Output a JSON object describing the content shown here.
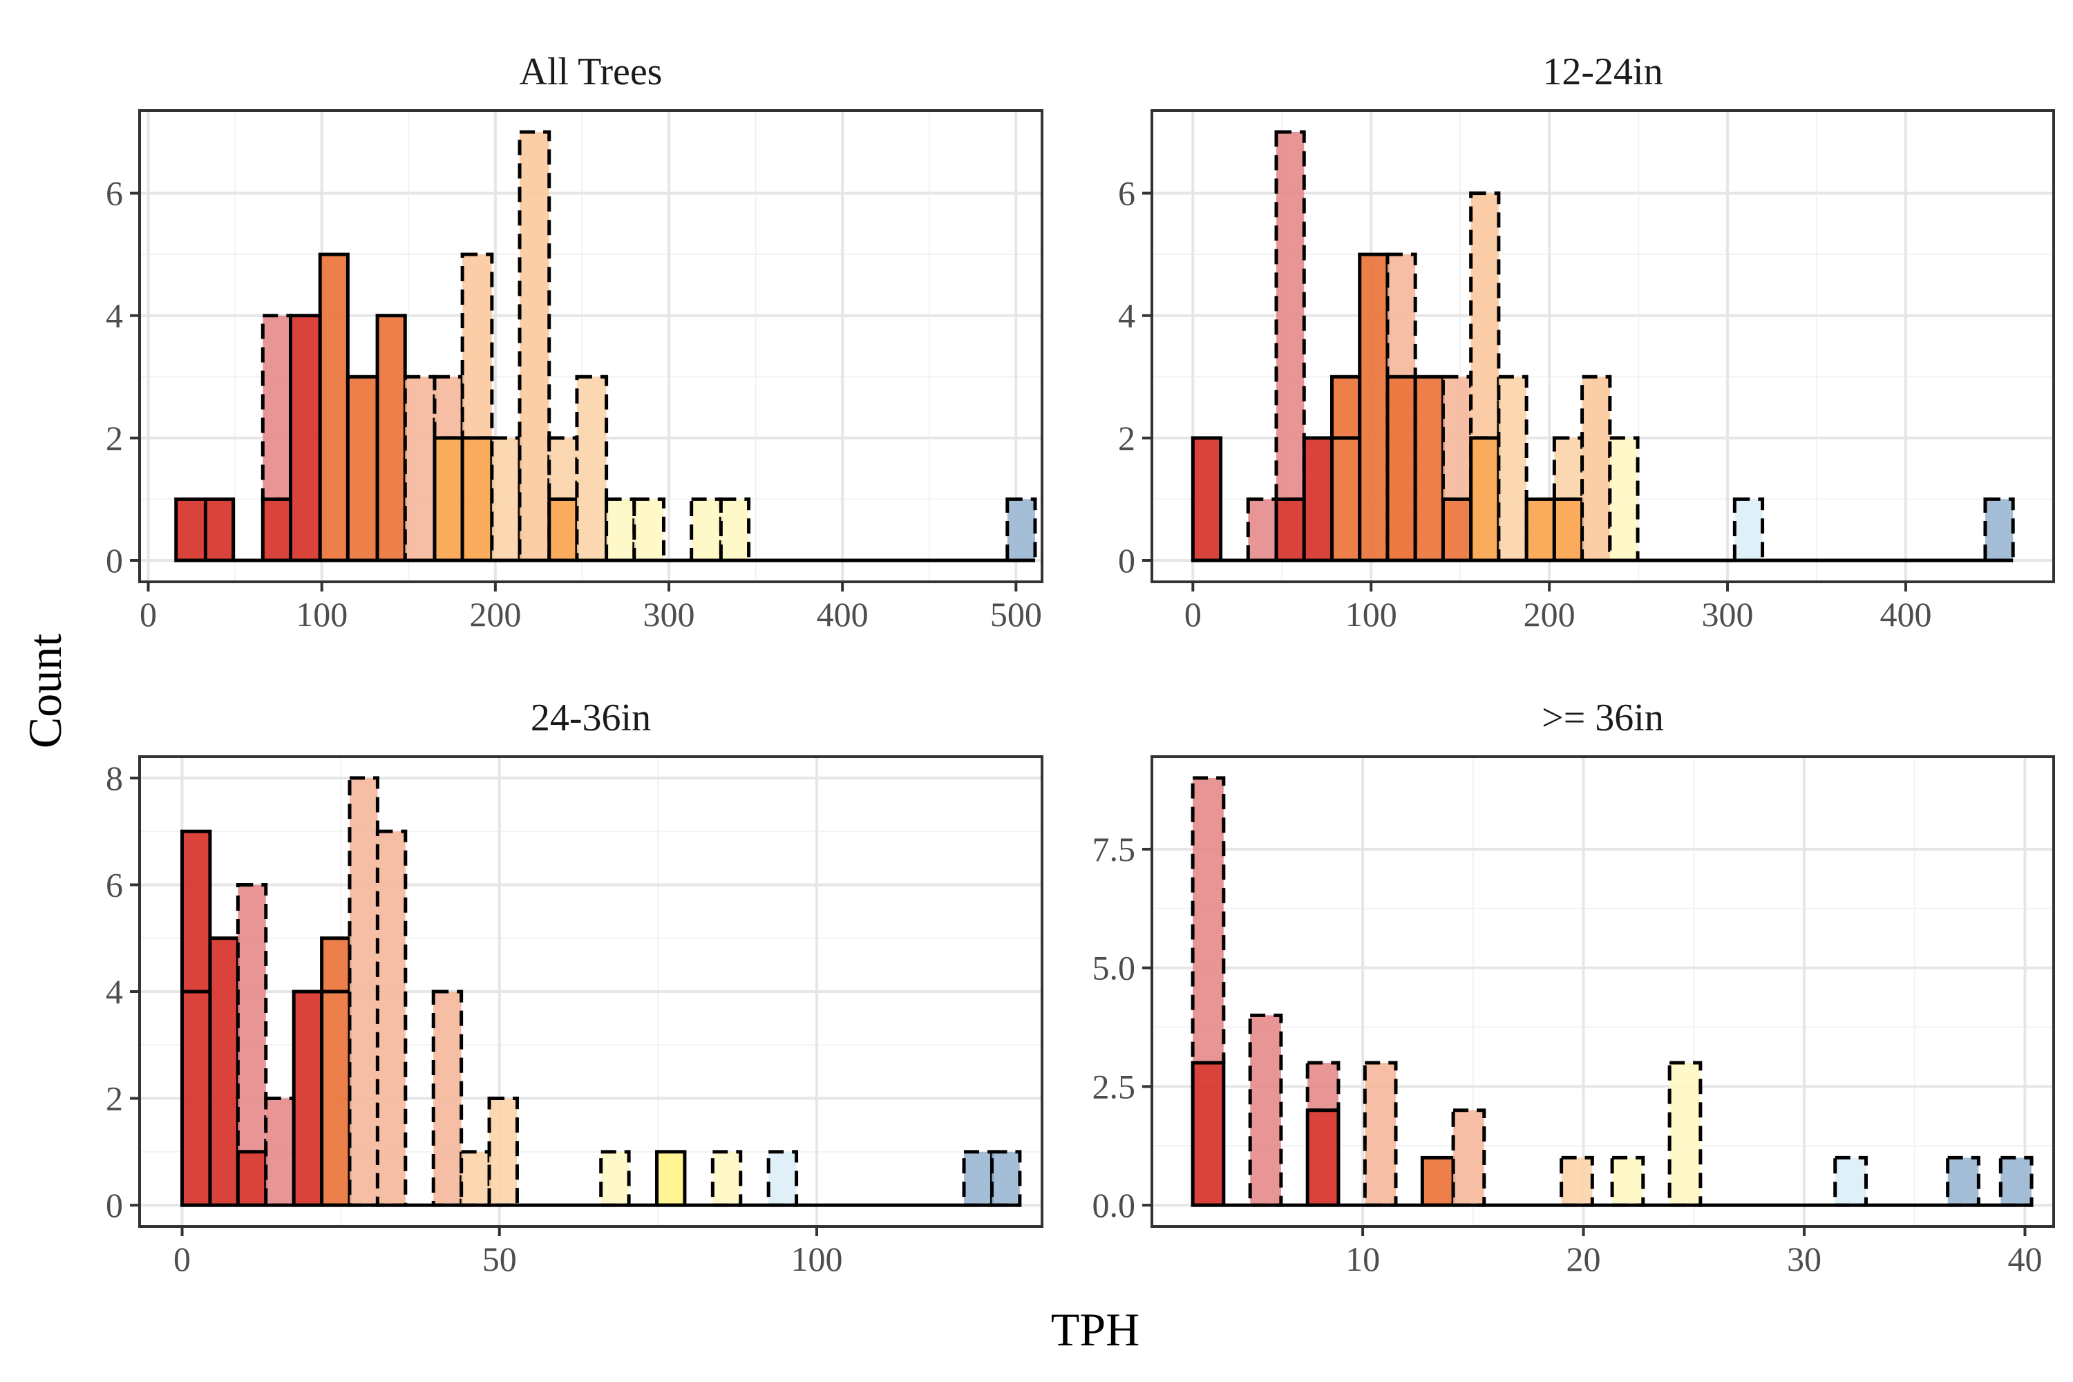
{
  "xlabel": "TPH",
  "ylabel": "Count",
  "colors": {
    "grid_major": "#e6e6e6",
    "grid_minor": "#f2f2f2",
    "panel_border": "#333333",
    "bar_stroke": "#000000"
  },
  "chart_data": [
    {
      "type": "bar",
      "title": "All Trees",
      "xlim": [
        -5,
        515
      ],
      "ylim": [
        -0.35,
        7.35
      ],
      "xticks": [
        0,
        100,
        200,
        300,
        400,
        500
      ],
      "yticks": [
        0,
        2,
        4,
        6
      ],
      "ytick_labels": [
        "0",
        "2",
        "4",
        "6"
      ],
      "bars": [
        {
          "x0": 16,
          "x1": 33,
          "base": 0,
          "top": 1,
          "color": "#d62f27",
          "dashed": false
        },
        {
          "x0": 33,
          "x1": 49,
          "base": 0,
          "top": 1,
          "color": "#d62f27",
          "dashed": false
        },
        {
          "x0": 66,
          "x1": 82,
          "base": 1,
          "top": 4,
          "color": "#e68a8a",
          "dashed": true
        },
        {
          "x0": 66,
          "x1": 82,
          "base": 0,
          "top": 1,
          "color": "#d62f27",
          "dashed": false
        },
        {
          "x0": 82,
          "x1": 99,
          "base": 0,
          "top": 4,
          "color": "#d62f27",
          "dashed": false
        },
        {
          "x0": 99,
          "x1": 115,
          "base": 0,
          "top": 5,
          "color": "#ea7136",
          "dashed": false
        },
        {
          "x0": 115,
          "x1": 132,
          "base": 0,
          "top": 3,
          "color": "#ea7136",
          "dashed": false
        },
        {
          "x0": 132,
          "x1": 148,
          "base": 0,
          "top": 4,
          "color": "#ea7136",
          "dashed": false
        },
        {
          "x0": 148,
          "x1": 165,
          "base": 0,
          "top": 3,
          "color": "#f5b79a",
          "dashed": true
        },
        {
          "x0": 165,
          "x1": 181,
          "base": 2,
          "top": 3,
          "color": "#f5b79a",
          "dashed": true
        },
        {
          "x0": 165,
          "x1": 181,
          "base": 0,
          "top": 2,
          "color": "#faa24a",
          "dashed": false
        },
        {
          "x0": 181,
          "x1": 198,
          "base": 2,
          "top": 5,
          "color": "#fbc99d",
          "dashed": true
        },
        {
          "x0": 181,
          "x1": 198,
          "base": 0,
          "top": 2,
          "color": "#faa24a",
          "dashed": false
        },
        {
          "x0": 198,
          "x1": 214,
          "base": 0,
          "top": 2,
          "color": "#fbd4aa",
          "dashed": true
        },
        {
          "x0": 214,
          "x1": 231,
          "base": 0,
          "top": 7,
          "color": "#fbc99d",
          "dashed": true
        },
        {
          "x0": 231,
          "x1": 247,
          "base": 1,
          "top": 2,
          "color": "#fbd4aa",
          "dashed": true
        },
        {
          "x0": 231,
          "x1": 247,
          "base": 0,
          "top": 1,
          "color": "#faa24a",
          "dashed": false
        },
        {
          "x0": 247,
          "x1": 264,
          "base": 0,
          "top": 3,
          "color": "#fbd4aa",
          "dashed": true
        },
        {
          "x0": 264,
          "x1": 280,
          "base": 0,
          "top": 1,
          "color": "#fff8c4",
          "dashed": true
        },
        {
          "x0": 280,
          "x1": 297,
          "base": 0,
          "top": 1,
          "color": "#fff8c4",
          "dashed": true
        },
        {
          "x0": 313,
          "x1": 330,
          "base": 0,
          "top": 1,
          "color": "#fff8c4",
          "dashed": true
        },
        {
          "x0": 330,
          "x1": 346,
          "base": 0,
          "top": 1,
          "color": "#fff8c4",
          "dashed": true
        },
        {
          "x0": 495,
          "x1": 511,
          "base": 0,
          "top": 1,
          "color": "#9bb7d4",
          "dashed": true
        }
      ],
      "baseline": [
        16,
        511
      ]
    },
    {
      "type": "bar",
      "title": "12-24in",
      "xlim": [
        -23,
        483
      ],
      "ylim": [
        -0.35,
        7.35
      ],
      "xticks": [
        0,
        100,
        200,
        300,
        400
      ],
      "yticks": [
        0,
        2,
        4,
        6
      ],
      "ytick_labels": [
        "0",
        "2",
        "4",
        "6"
      ],
      "bars": [
        {
          "x0": 0,
          "x1": 15.6,
          "base": 0,
          "top": 2,
          "color": "#d62f27",
          "dashed": false
        },
        {
          "x0": 31,
          "x1": 46.8,
          "base": 0,
          "top": 1,
          "color": "#e68a8a",
          "dashed": true
        },
        {
          "x0": 46.8,
          "x1": 62.4,
          "base": 1,
          "top": 7,
          "color": "#e68a8a",
          "dashed": true
        },
        {
          "x0": 46.8,
          "x1": 62.4,
          "base": 0,
          "top": 1,
          "color": "#d62f27",
          "dashed": false
        },
        {
          "x0": 62.4,
          "x1": 78,
          "base": 0,
          "top": 2,
          "color": "#d62f27",
          "dashed": false
        },
        {
          "x0": 78,
          "x1": 93.6,
          "base": 0,
          "top": 2,
          "color": "#ea7136",
          "dashed": false
        },
        {
          "x0": 78,
          "x1": 93.6,
          "base": 2,
          "top": 3,
          "color": "#ea7136",
          "dashed": false
        },
        {
          "x0": 93.6,
          "x1": 109.2,
          "base": 0,
          "top": 5,
          "color": "#ea7136",
          "dashed": false
        },
        {
          "x0": 109.2,
          "x1": 124.8,
          "base": 0,
          "top": 5,
          "color": "#f5b79a",
          "dashed": true
        },
        {
          "x0": 109.2,
          "x1": 124.8,
          "base": 0,
          "top": 3,
          "color": "#ea7136",
          "dashed": false
        },
        {
          "x0": 124.8,
          "x1": 140.4,
          "base": 0,
          "top": 3,
          "color": "#ea7136",
          "dashed": false
        },
        {
          "x0": 140.4,
          "x1": 156,
          "base": 1,
          "top": 3,
          "color": "#f5b79a",
          "dashed": true
        },
        {
          "x0": 140.4,
          "x1": 156,
          "base": 0,
          "top": 1,
          "color": "#ea7136",
          "dashed": false
        },
        {
          "x0": 156,
          "x1": 171.6,
          "base": 2,
          "top": 6,
          "color": "#fbc99d",
          "dashed": true
        },
        {
          "x0": 156,
          "x1": 171.6,
          "base": 0,
          "top": 2,
          "color": "#faa24a",
          "dashed": false
        },
        {
          "x0": 171.6,
          "x1": 187.2,
          "base": 0,
          "top": 3,
          "color": "#fbd4aa",
          "dashed": true
        },
        {
          "x0": 187.2,
          "x1": 202.8,
          "base": 0,
          "top": 1,
          "color": "#faa24a",
          "dashed": false
        },
        {
          "x0": 202.8,
          "x1": 218.4,
          "base": 1,
          "top": 2,
          "color": "#fbd4aa",
          "dashed": true
        },
        {
          "x0": 202.8,
          "x1": 218.4,
          "base": 0,
          "top": 1,
          "color": "#faa24a",
          "dashed": false
        },
        {
          "x0": 218.4,
          "x1": 234,
          "base": 0,
          "top": 3,
          "color": "#fbc99d",
          "dashed": true
        },
        {
          "x0": 234,
          "x1": 249.6,
          "base": 0,
          "top": 2,
          "color": "#fff8c4",
          "dashed": true
        },
        {
          "x0": 304,
          "x1": 319.6,
          "base": 0,
          "top": 1,
          "color": "#dbeef8",
          "dashed": true
        },
        {
          "x0": 444.6,
          "x1": 460.2,
          "base": 0,
          "top": 1,
          "color": "#9bb7d4",
          "dashed": true
        }
      ],
      "baseline": [
        0,
        460.2
      ]
    },
    {
      "type": "bar",
      "title": "24-36in",
      "xlim": [
        -6.7,
        135.5
      ],
      "ylim": [
        -0.4,
        8.4
      ],
      "xticks": [
        0,
        50,
        100
      ],
      "yticks": [
        0,
        2,
        4,
        6,
        8
      ],
      "ytick_labels": [
        "0",
        "2",
        "4",
        "6",
        "8"
      ],
      "bars": [
        {
          "x0": 0,
          "x1": 4.4,
          "base": 4,
          "top": 7,
          "color": "#d62f27",
          "dashed": false
        },
        {
          "x0": 0,
          "x1": 4.4,
          "base": 0,
          "top": 4,
          "color": "#d62f27",
          "dashed": false
        },
        {
          "x0": 4.4,
          "x1": 8.8,
          "base": 0,
          "top": 5,
          "color": "#d62f27",
          "dashed": false
        },
        {
          "x0": 8.8,
          "x1": 13.2,
          "base": 1,
          "top": 6,
          "color": "#e68a8a",
          "dashed": true
        },
        {
          "x0": 8.8,
          "x1": 13.2,
          "base": 0,
          "top": 1,
          "color": "#d62f27",
          "dashed": false
        },
        {
          "x0": 13.2,
          "x1": 17.6,
          "base": 0,
          "top": 2,
          "color": "#e68a8a",
          "dashed": true
        },
        {
          "x0": 17.6,
          "x1": 22,
          "base": 0,
          "top": 4,
          "color": "#d62f27",
          "dashed": false
        },
        {
          "x0": 22,
          "x1": 26.4,
          "base": 0,
          "top": 4,
          "color": "#ea7136",
          "dashed": false
        },
        {
          "x0": 22,
          "x1": 26.4,
          "base": 4,
          "top": 5,
          "color": "#ea7136",
          "dashed": false
        },
        {
          "x0": 26.4,
          "x1": 30.8,
          "base": 0,
          "top": 8,
          "color": "#f5b79a",
          "dashed": true
        },
        {
          "x0": 30.8,
          "x1": 35.2,
          "base": 0,
          "top": 7,
          "color": "#f5b79a",
          "dashed": true
        },
        {
          "x0": 39.6,
          "x1": 44,
          "base": 0,
          "top": 4,
          "color": "#f5b79a",
          "dashed": true
        },
        {
          "x0": 44,
          "x1": 48.4,
          "base": 0,
          "top": 1,
          "color": "#fbd4aa",
          "dashed": true
        },
        {
          "x0": 48.4,
          "x1": 52.8,
          "base": 0,
          "top": 2,
          "color": "#fbd4aa",
          "dashed": true
        },
        {
          "x0": 66,
          "x1": 70.4,
          "base": 0,
          "top": 1,
          "color": "#fff8c4",
          "dashed": true
        },
        {
          "x0": 74.8,
          "x1": 79.2,
          "base": 0,
          "top": 1,
          "color": "#fff385",
          "dashed": false
        },
        {
          "x0": 83.6,
          "x1": 88,
          "base": 0,
          "top": 1,
          "color": "#fff8c4",
          "dashed": true
        },
        {
          "x0": 92.4,
          "x1": 96.8,
          "base": 0,
          "top": 1,
          "color": "#dbeef8",
          "dashed": true
        },
        {
          "x0": 123.2,
          "x1": 127.6,
          "base": 0,
          "top": 1,
          "color": "#9bb7d4",
          "dashed": true
        },
        {
          "x0": 127.6,
          "x1": 132,
          "base": 0,
          "top": 1,
          "color": "#9bb7d4",
          "dashed": true
        }
      ],
      "baseline": [
        0,
        132
      ]
    },
    {
      "type": "bar",
      "title": ">= 36in",
      "xlim": [
        0.45,
        41.3
      ],
      "ylim": [
        -0.45,
        9.45
      ],
      "xticks": [
        10,
        20,
        30,
        40
      ],
      "yticks": [
        0,
        2.5,
        5,
        7.5
      ],
      "ytick_labels": [
        "0.0",
        "2.5",
        "5.0",
        "7.5"
      ],
      "bars": [
        {
          "x0": 2.3,
          "x1": 3.7,
          "base": 3,
          "top": 9,
          "color": "#e68a8a",
          "dashed": true
        },
        {
          "x0": 2.3,
          "x1": 3.7,
          "base": 0,
          "top": 3,
          "color": "#d62f27",
          "dashed": false
        },
        {
          "x0": 4.9,
          "x1": 6.3,
          "base": 0,
          "top": 4,
          "color": "#e68a8a",
          "dashed": true
        },
        {
          "x0": 7.5,
          "x1": 8.9,
          "base": 2,
          "top": 3,
          "color": "#e68a8a",
          "dashed": true
        },
        {
          "x0": 7.5,
          "x1": 8.9,
          "base": 0,
          "top": 2,
          "color": "#d62f27",
          "dashed": false
        },
        {
          "x0": 10.1,
          "x1": 11.5,
          "base": 0,
          "top": 3,
          "color": "#f5b79a",
          "dashed": true
        },
        {
          "x0": 12.7,
          "x1": 14.1,
          "base": 0,
          "top": 1,
          "color": "#ea7136",
          "dashed": false
        },
        {
          "x0": 14.1,
          "x1": 15.5,
          "base": 0,
          "top": 2,
          "color": "#f5b79a",
          "dashed": true
        },
        {
          "x0": 19.0,
          "x1": 20.4,
          "base": 0,
          "top": 1,
          "color": "#fbd4aa",
          "dashed": true
        },
        {
          "x0": 21.3,
          "x1": 22.7,
          "base": 0,
          "top": 1,
          "color": "#fff8c4",
          "dashed": true
        },
        {
          "x0": 23.9,
          "x1": 25.3,
          "base": 0,
          "top": 3,
          "color": "#fff8c4",
          "dashed": true
        },
        {
          "x0": 31.4,
          "x1": 32.8,
          "base": 0,
          "top": 1,
          "color": "#dbeef8",
          "dashed": true
        },
        {
          "x0": 36.5,
          "x1": 37.9,
          "base": 0,
          "top": 1,
          "color": "#9bb7d4",
          "dashed": true
        },
        {
          "x0": 38.9,
          "x1": 40.3,
          "base": 0,
          "top": 1,
          "color": "#9bb7d4",
          "dashed": true
        }
      ],
      "baseline": [
        2.3,
        40.3
      ]
    }
  ]
}
